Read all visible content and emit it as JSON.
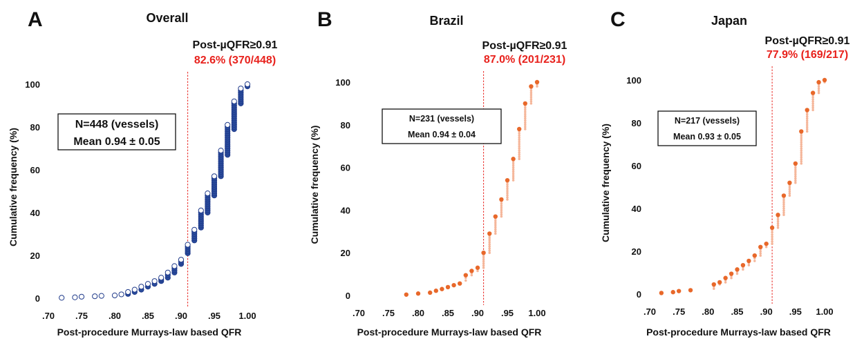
{
  "chart_data": [
    {
      "type": "scatter",
      "panel_letter": "A",
      "title": "Overall",
      "threshold": 0.91,
      "threshold_label": "Post-µQFR≥0.91",
      "threshold_result": "82.6% (370/448)",
      "annotation_line1": "N=448 (vessels)",
      "annotation_line2": "Mean 0.94 ± 0.05",
      "xlabel": "Post-procedure Murrays-law based QFR",
      "ylabel": "Cumulative frequency (%)",
      "xlim": [
        0.7,
        1.0
      ],
      "ylim": [
        0,
        100
      ],
      "x_ticks": [
        ".70",
        ".75",
        ".80",
        ".85",
        ".90",
        ".95",
        "1.00"
      ],
      "y_ticks": [
        "0",
        "20",
        "40",
        "60",
        "80",
        "100"
      ],
      "marker": "hollow-navy",
      "color": "#1f3a8a",
      "x": [
        0.72,
        0.74,
        0.75,
        0.77,
        0.78,
        0.8,
        0.81,
        0.82,
        0.83,
        0.84,
        0.85,
        0.86,
        0.87,
        0.88,
        0.89,
        0.9,
        0.91,
        0.92,
        0.93,
        0.94,
        0.95,
        0.96,
        0.97,
        0.98,
        0.99,
        1.0
      ],
      "y_low": [
        0.2,
        0.4,
        0.7,
        0.9,
        1.1,
        1.3,
        1.6,
        2.0,
        2.9,
        4.0,
        5.4,
        6.7,
        8.0,
        9.6,
        12.0,
        16.0,
        21.0,
        27.0,
        33.0,
        40.0,
        48.0,
        57.0,
        67.0,
        79.0,
        91.0,
        99.0
      ],
      "y_high": [
        0.2,
        0.4,
        0.7,
        0.9,
        1.1,
        1.3,
        1.8,
        2.9,
        4.0,
        5.4,
        6.7,
        8.0,
        9.6,
        12.0,
        15.0,
        18.0,
        25.0,
        32.0,
        41.0,
        49.0,
        57.0,
        69.0,
        81.0,
        92.0,
        98.0,
        100.0
      ]
    },
    {
      "type": "scatter",
      "panel_letter": "B",
      "title": "Brazil",
      "threshold": 0.91,
      "threshold_label": "Post-µQFR≥0.91",
      "threshold_result": "87.0% (201/231)",
      "annotation_line1": "N=231 (vessels)",
      "annotation_line2": "Mean 0.94 ± 0.04",
      "xlabel": "Post-procedure Murrays-law based QFR",
      "ylabel": "Cumulative frequency (%)",
      "xlim": [
        0.7,
        1.0
      ],
      "ylim": [
        0,
        100
      ],
      "x_ticks": [
        ".70",
        ".75",
        ".80",
        ".85",
        ".90",
        ".95",
        "1.00"
      ],
      "y_ticks": [
        "0",
        "20",
        "40",
        "60",
        "80",
        "100"
      ],
      "marker": "filled-orange",
      "color": "#e8682a",
      "x": [
        0.78,
        0.8,
        0.82,
        0.83,
        0.84,
        0.85,
        0.86,
        0.87,
        0.88,
        0.89,
        0.9,
        0.91,
        0.92,
        0.93,
        0.94,
        0.95,
        0.96,
        0.97,
        0.98,
        0.99,
        1.0
      ],
      "y_low": [
        0.4,
        0.9,
        1.3,
        2.2,
        3.0,
        3.9,
        4.8,
        5.6,
        7.0,
        9.5,
        11.5,
        13.0,
        20.0,
        29.0,
        37.0,
        45.0,
        54.0,
        64.0,
        78.0,
        90.0,
        98.0
      ],
      "y_high": [
        0.4,
        0.9,
        1.3,
        2.2,
        3.0,
        3.9,
        4.8,
        5.6,
        9.5,
        11.5,
        13.0,
        20.0,
        29.0,
        37.0,
        45.0,
        54.0,
        64.0,
        78.0,
        90.0,
        98.0,
        100.0
      ]
    },
    {
      "type": "scatter",
      "panel_letter": "C",
      "title": "Japan",
      "threshold": 0.91,
      "threshold_label": "Post-µQFR≥0.91",
      "threshold_result": "77.9% (169/217)",
      "annotation_line1": "N=217 (vessels)",
      "annotation_line2": "Mean 0.93 ± 0.05",
      "xlabel": "Post-procedure Murrays-law based QFR",
      "ylabel": "Cumulative frequency (%)",
      "xlim": [
        0.7,
        1.0
      ],
      "ylim": [
        0,
        100
      ],
      "x_ticks": [
        ".70",
        ".75",
        ".80",
        ".85",
        ".90",
        ".95",
        "1.00"
      ],
      "y_ticks": [
        "0",
        "20",
        "40",
        "60",
        "80",
        "100"
      ],
      "marker": "filled-orange",
      "color": "#e8682a",
      "x": [
        0.72,
        0.74,
        0.75,
        0.77,
        0.81,
        0.82,
        0.83,
        0.84,
        0.85,
        0.86,
        0.87,
        0.88,
        0.89,
        0.9,
        0.91,
        0.92,
        0.93,
        0.94,
        0.95,
        0.96,
        0.97,
        0.98,
        0.99,
        1.0
      ],
      "y_low": [
        0.5,
        0.9,
        1.4,
        1.8,
        2.5,
        4.5,
        5.5,
        7.5,
        9.5,
        11.5,
        13.5,
        15.5,
        18.0,
        22.0,
        23.5,
        31.0,
        37.0,
        46.0,
        52.0,
        61.0,
        76.0,
        86.0,
        94.0,
        99.0
      ],
      "y_high": [
        0.5,
        0.9,
        1.4,
        1.8,
        4.5,
        5.5,
        7.5,
        9.5,
        11.5,
        13.5,
        15.5,
        18.0,
        22.0,
        23.5,
        31.0,
        37.0,
        46.0,
        52.0,
        61.0,
        76.0,
        86.0,
        94.0,
        99.0,
        100.0
      ]
    }
  ]
}
